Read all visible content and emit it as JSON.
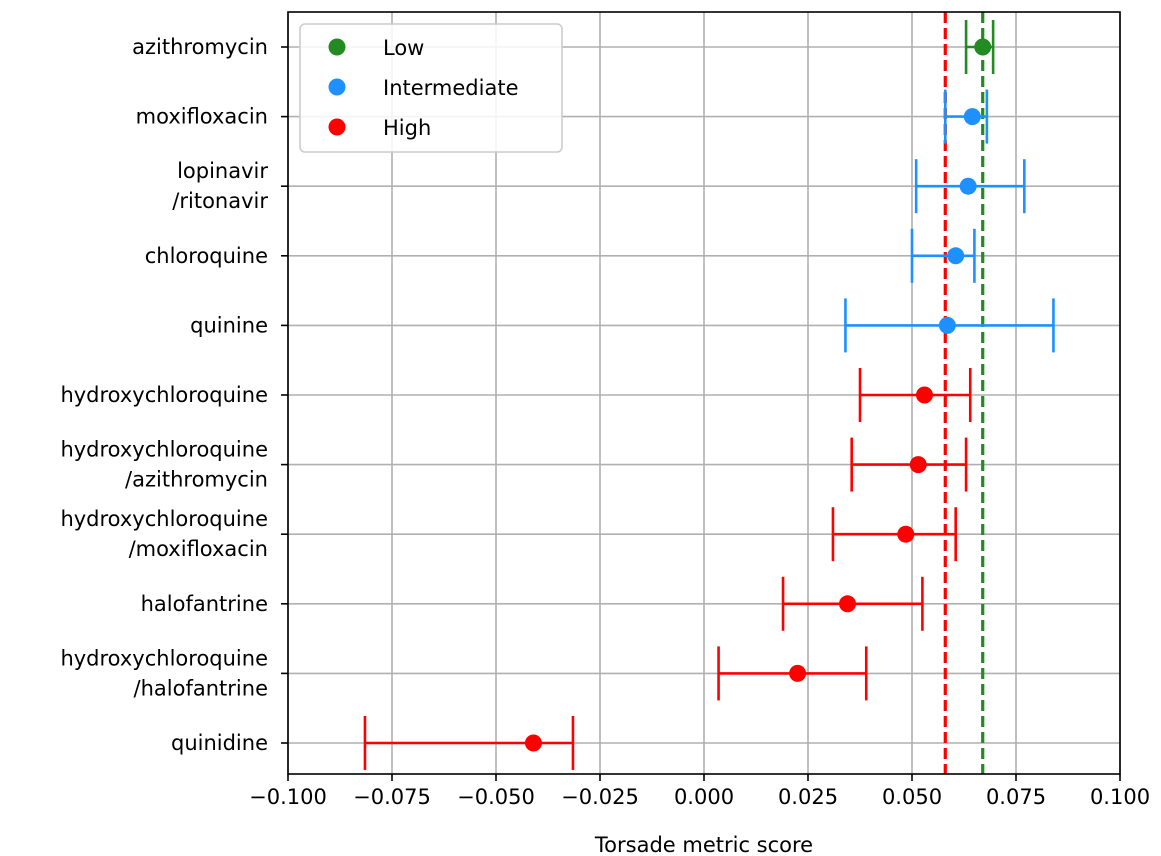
{
  "chart_data": {
    "type": "scatter",
    "title": "",
    "xlabel": "Torsade metric score",
    "ylabel": "",
    "xlim": [
      -0.1,
      0.1
    ],
    "xticks": [
      -0.1,
      -0.075,
      -0.05,
      -0.025,
      0.0,
      0.025,
      0.05,
      0.075,
      0.1
    ],
    "xtick_labels": [
      "−0.100",
      "−0.075",
      "−0.050",
      "−0.025",
      "0.000",
      "0.025",
      "0.050",
      "0.075",
      "0.100"
    ],
    "grid": true,
    "legend_position": "top-left",
    "series": [
      {
        "name": "Low",
        "color": "#228b22"
      },
      {
        "name": "Intermediate",
        "color": "#1e90ff"
      },
      {
        "name": "High",
        "color": "#ff0000"
      }
    ],
    "reference_lines": [
      {
        "x": 0.058,
        "color": "#ff0000",
        "style": "dashed"
      },
      {
        "x": 0.067,
        "color": "#228b22",
        "style": "dashed"
      }
    ],
    "points": [
      {
        "label": [
          "azithromycin"
        ],
        "risk": "Low",
        "value": 0.067,
        "ci_low": 0.063,
        "ci_high": 0.0695
      },
      {
        "label": [
          "moxifloxacin"
        ],
        "risk": "Intermediate",
        "value": 0.0645,
        "ci_low": 0.058,
        "ci_high": 0.068
      },
      {
        "label": [
          "lopinavir",
          "/ritonavir"
        ],
        "risk": "Intermediate",
        "value": 0.0635,
        "ci_low": 0.051,
        "ci_high": 0.077
      },
      {
        "label": [
          "chloroquine"
        ],
        "risk": "Intermediate",
        "value": 0.0605,
        "ci_low": 0.05,
        "ci_high": 0.065
      },
      {
        "label": [
          "quinine"
        ],
        "risk": "Intermediate",
        "value": 0.0585,
        "ci_low": 0.034,
        "ci_high": 0.084
      },
      {
        "label": [
          "hydroxychloroquine"
        ],
        "risk": "High",
        "value": 0.053,
        "ci_low": 0.0375,
        "ci_high": 0.064
      },
      {
        "label": [
          "hydroxychloroquine",
          "/azithromycin"
        ],
        "risk": "High",
        "value": 0.0515,
        "ci_low": 0.0355,
        "ci_high": 0.063
      },
      {
        "label": [
          "hydroxychloroquine",
          "/moxifloxacin"
        ],
        "risk": "High",
        "value": 0.0485,
        "ci_low": 0.031,
        "ci_high": 0.0605
      },
      {
        "label": [
          "halofantrine"
        ],
        "risk": "High",
        "value": 0.0345,
        "ci_low": 0.019,
        "ci_high": 0.0525
      },
      {
        "label": [
          "hydroxychloroquine",
          "/halofantrine"
        ],
        "risk": "High",
        "value": 0.0225,
        "ci_low": 0.0035,
        "ci_high": 0.039
      },
      {
        "label": [
          "quinidine"
        ],
        "risk": "High",
        "value": -0.041,
        "ci_low": -0.0815,
        "ci_high": -0.0315
      }
    ]
  }
}
